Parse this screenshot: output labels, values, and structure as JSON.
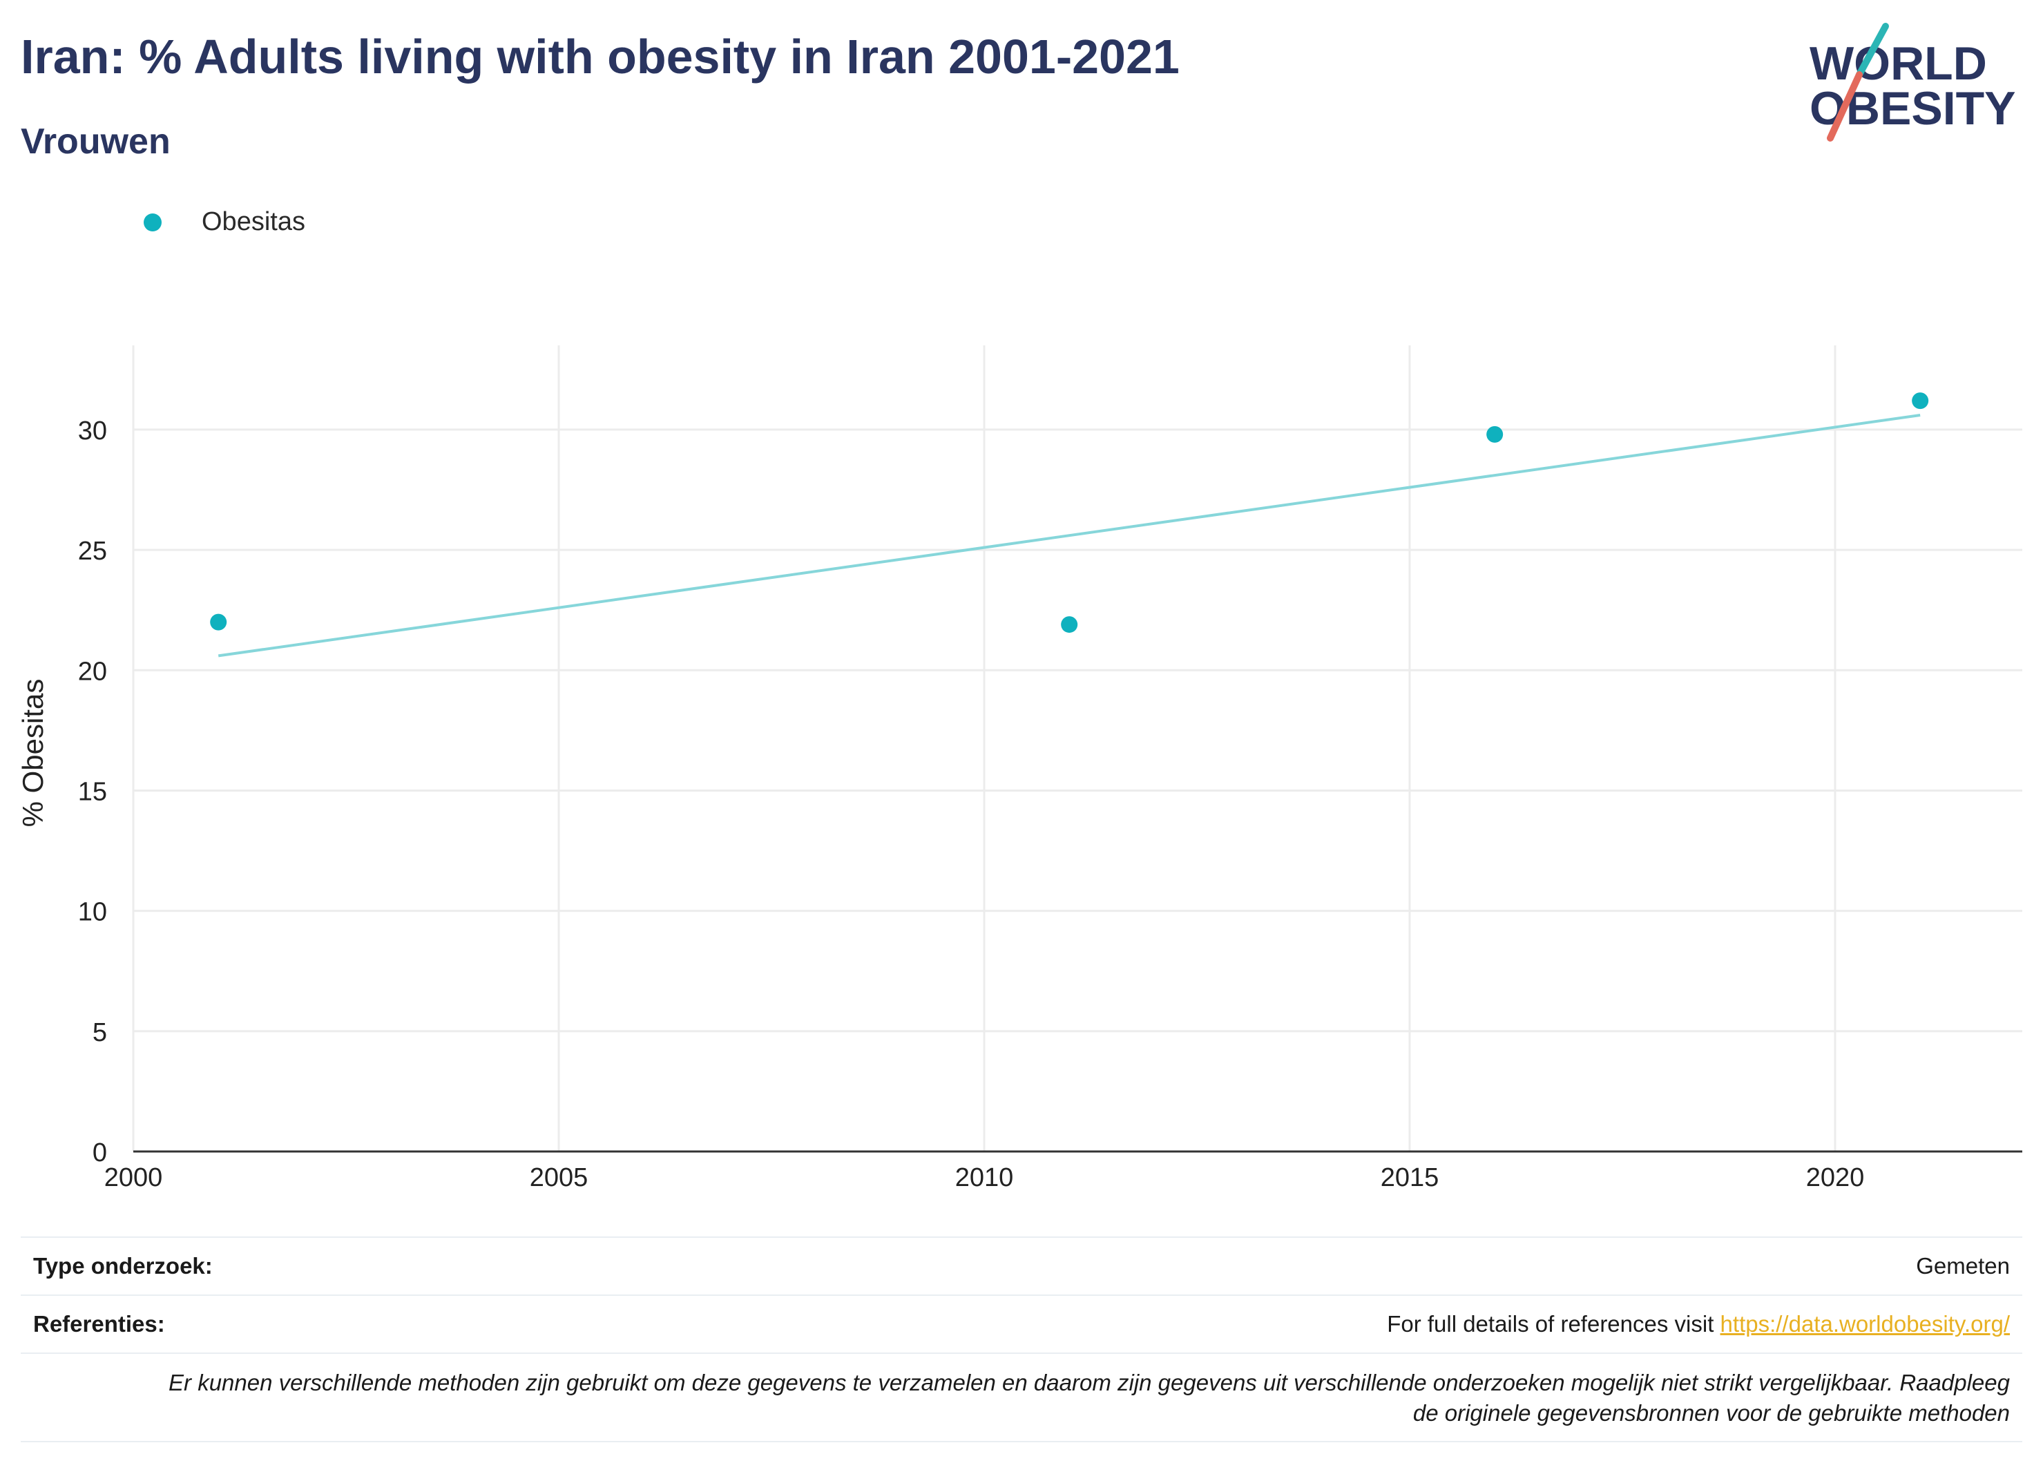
{
  "header": {
    "title": "Iran: % Adults living with obesity in Iran 2001-2021",
    "subtitle": "Vrouwen"
  },
  "logo": {
    "line1": "WORLD",
    "line2": "OBESITY",
    "accent_teal": "#2bb5b5",
    "accent_red": "#e36a5c",
    "text_color": "#2a3560"
  },
  "legend": {
    "items": [
      {
        "label": "Obesitas",
        "color": "#0fb1be"
      }
    ]
  },
  "chart_data": {
    "type": "scatter",
    "title": "Iran: % Adults living with obesity in Iran 2001-2021",
    "subtitle": "Vrouwen",
    "xlabel": "",
    "ylabel": "% Obesitas",
    "xlim": [
      2000,
      2022.2
    ],
    "ylim": [
      0,
      33.5
    ],
    "xticks": [
      2000,
      2005,
      2010,
      2015,
      2020
    ],
    "yticks": [
      0,
      5,
      10,
      15,
      20,
      25,
      30
    ],
    "grid": true,
    "legend_position": "top-left",
    "series": [
      {
        "name": "Obesitas",
        "color": "#0fb1be",
        "points": [
          {
            "x": 2001,
            "y": 22.0
          },
          {
            "x": 2011,
            "y": 21.9
          },
          {
            "x": 2016,
            "y": 29.8
          },
          {
            "x": 2021,
            "y": 31.2
          }
        ]
      }
    ],
    "trendline": {
      "color": "#86d6da",
      "from": {
        "x": 2001,
        "y": 20.6
      },
      "to": {
        "x": 2021,
        "y": 30.6
      }
    }
  },
  "footer": {
    "type_label": "Type onderzoek:",
    "type_value": "Gemeten",
    "ref_label": "Referenties:",
    "ref_text": "For full details of references visit ",
    "ref_link": "https://data.worldobesity.org/",
    "note_line1": "Er kunnen verschillende methoden zijn gebruikt om deze gegevens te verzamelen en daarom zijn gegevens uit verschillende onderzoeken mogelijk niet strikt vergelijkbaar. Raadpleeg",
    "note_line2": "de originele gegevensbronnen voor de gebruikte methoden"
  }
}
